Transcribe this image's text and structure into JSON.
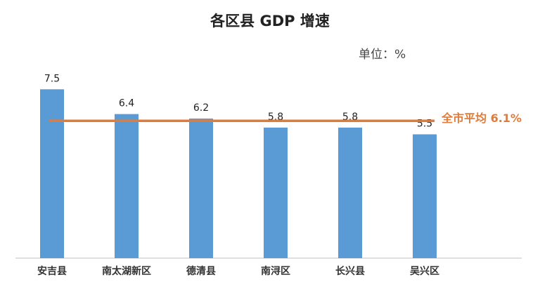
{
  "chart_data": {
    "type": "bar",
    "title": "各区县 GDP 增速",
    "unit_label": "单位：%",
    "categories": [
      "安吉县",
      "南太湖新区",
      "德清县",
      "南浔区",
      "长兴县",
      "吴兴区"
    ],
    "values": [
      7.5,
      6.4,
      6.2,
      5.8,
      5.8,
      5.5
    ],
    "value_labels": [
      "7.5",
      "6.4",
      "6.2",
      "5.8",
      "5.8",
      "5.5"
    ],
    "reference_line": {
      "value": 6.1,
      "label": "全市平均 6.1%"
    },
    "ylim": [
      0,
      8.6
    ],
    "grid": false,
    "legend": "none",
    "colors": {
      "bar": "#5B9BD5",
      "avg_line": "#E07B39",
      "axis": "#BFBFBF"
    }
  }
}
